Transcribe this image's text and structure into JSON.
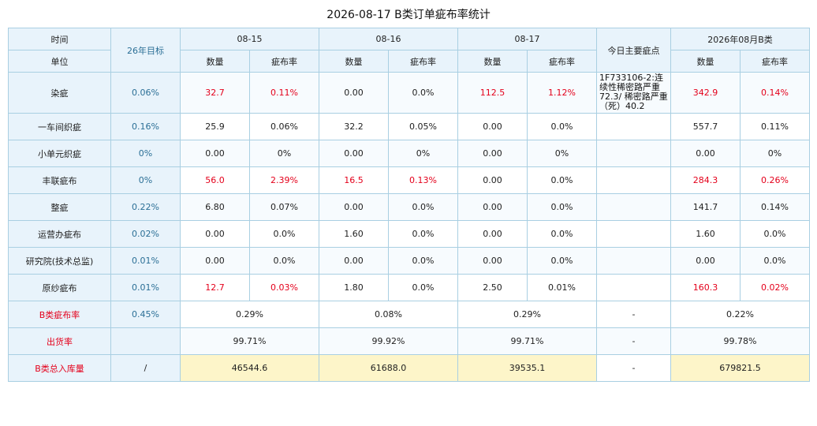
{
  "title": "2026-08-17 B类订单疵布率统计",
  "header": {
    "time_label": "时间",
    "unit_label": "单位",
    "target_label": "26年目标",
    "dates": [
      "08-15",
      "08-16",
      "08-17"
    ],
    "main_defect_label": "今日主要疵点",
    "month_label": "2026年08月B类",
    "qty_label": "数量",
    "rate_label": "疵布率"
  },
  "rows": [
    {
      "unit": "染疵",
      "target": "0.06%",
      "d1_qty": "32.7",
      "d1_rate": "0.11%",
      "d2_qty": "0.00",
      "d2_rate": "0.0%",
      "d3_qty": "112.5",
      "d3_rate": "1.12%",
      "defect": "1F733106-2:连续性稀密路严重72.3/ 稀密路严重（死）40.2",
      "m_qty": "342.9",
      "m_rate": "0.14%"
    },
    {
      "unit": "一车间织疵",
      "target": "0.16%",
      "d1_qty": "25.9",
      "d1_rate": "0.06%",
      "d2_qty": "32.2",
      "d2_rate": "0.05%",
      "d3_qty": "0.00",
      "d3_rate": "0.0%",
      "defect": "",
      "m_qty": "557.7",
      "m_rate": "0.11%"
    },
    {
      "unit": "小单元织疵",
      "target": "0%",
      "d1_qty": "0.00",
      "d1_rate": "0%",
      "d2_qty": "0.00",
      "d2_rate": "0%",
      "d3_qty": "0.00",
      "d3_rate": "0%",
      "defect": "",
      "m_qty": "0.00",
      "m_rate": "0%"
    },
    {
      "unit": "丰联疵布",
      "target": "0%",
      "d1_qty": "56.0",
      "d1_rate": "2.39%",
      "d2_qty": "16.5",
      "d2_rate": "0.13%",
      "d3_qty": "0.00",
      "d3_rate": "0.0%",
      "defect": "",
      "m_qty": "284.3",
      "m_rate": "0.26%"
    },
    {
      "unit": "整疵",
      "target": "0.22%",
      "d1_qty": "6.80",
      "d1_rate": "0.07%",
      "d2_qty": "0.00",
      "d2_rate": "0.0%",
      "d3_qty": "0.00",
      "d3_rate": "0.0%",
      "defect": "",
      "m_qty": "141.7",
      "m_rate": "0.14%"
    },
    {
      "unit": "运营办疵布",
      "target": "0.02%",
      "d1_qty": "0.00",
      "d1_rate": "0.0%",
      "d2_qty": "1.60",
      "d2_rate": "0.0%",
      "d3_qty": "0.00",
      "d3_rate": "0.0%",
      "defect": "",
      "m_qty": "1.60",
      "m_rate": "0.0%"
    },
    {
      "unit": "研究院(技术总监)",
      "target": "0.01%",
      "d1_qty": "0.00",
      "d1_rate": "0.0%",
      "d2_qty": "0.00",
      "d2_rate": "0.0%",
      "d3_qty": "0.00",
      "d3_rate": "0.0%",
      "defect": "",
      "m_qty": "0.00",
      "m_rate": "0.0%"
    },
    {
      "unit": "原纱疵布",
      "target": "0.01%",
      "d1_qty": "12.7",
      "d1_rate": "0.03%",
      "d2_qty": "1.80",
      "d2_rate": "0.0%",
      "d3_qty": "2.50",
      "d3_rate": "0.01%",
      "defect": "",
      "m_qty": "160.3",
      "m_rate": "0.02%"
    }
  ],
  "summary": {
    "defect_rate": {
      "label": "B类疵布率",
      "target": "0.45%",
      "d1": "0.29%",
      "d2": "0.08%",
      "d3": "0.29%",
      "defect": "-",
      "month": "0.22%"
    },
    "shipping_rate": {
      "label": "出货率",
      "target": "",
      "d1": "99.71%",
      "d2": "99.92%",
      "d3": "99.71%",
      "defect": "-",
      "month": "99.78%"
    },
    "inbound": {
      "label": "B类总入库量",
      "target": "/",
      "d1": "46544.6",
      "d2": "61688.0",
      "d3": "39535.1",
      "defect": "-",
      "month": "679821.5"
    }
  }
}
